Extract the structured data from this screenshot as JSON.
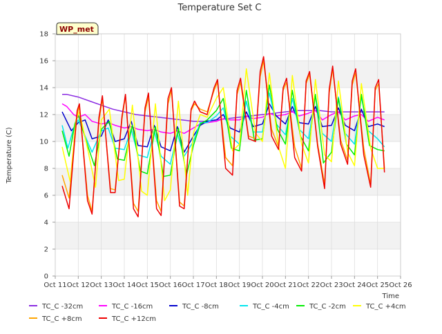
{
  "chart_data": {
    "type": "line",
    "title": "Temperature Set C",
    "xlabel": "Time",
    "ylabel": "Temperature (C)",
    "site_label": "WP_met",
    "xlim": [
      11,
      26
    ],
    "ylim": [
      0,
      18
    ],
    "x_ticks": [
      {
        "value": 11,
        "label": "Oct 11"
      },
      {
        "value": 12,
        "label": "Oct 12"
      },
      {
        "value": 13,
        "label": "Oct 13"
      },
      {
        "value": 14,
        "label": "Oct 14"
      },
      {
        "value": 15,
        "label": "Oct 15"
      },
      {
        "value": 16,
        "label": "Oct 16"
      },
      {
        "value": 17,
        "label": "Oct 17"
      },
      {
        "value": 18,
        "label": "Oct 18"
      },
      {
        "value": 19,
        "label": "Oct 19"
      },
      {
        "value": 20,
        "label": "Oct 20"
      },
      {
        "value": 21,
        "label": "Oct 21"
      },
      {
        "value": 22,
        "label": "Oct 22"
      },
      {
        "value": 23,
        "label": "Oct 23"
      },
      {
        "value": 24,
        "label": "Oct 24"
      },
      {
        "value": 25,
        "label": "Oct 25"
      },
      {
        "value": 26,
        "label": "Oct 26"
      }
    ],
    "y_ticks": [
      0,
      2,
      4,
      6,
      8,
      10,
      12,
      14,
      16,
      18
    ],
    "grid": true,
    "legend_placement": "bottom",
    "series": [
      {
        "name": "TC_C -32cm",
        "color": "#8a2be2",
        "x": [
          11.3,
          11.5,
          12,
          12.5,
          13,
          13.5,
          14,
          14.5,
          15,
          15.5,
          16,
          16.5,
          17,
          17.5,
          18,
          18.5,
          19,
          19.5,
          20,
          20.5,
          21,
          21.5,
          22,
          22.5,
          23,
          23.5,
          24,
          24.5,
          25,
          25.3
        ],
        "y": [
          13.5,
          13.5,
          13.3,
          13.0,
          12.7,
          12.4,
          12.2,
          12.0,
          11.9,
          11.8,
          11.7,
          11.6,
          11.5,
          11.5,
          11.6,
          11.7,
          11.8,
          11.9,
          12.0,
          12.1,
          12.2,
          12.3,
          12.3,
          12.3,
          12.2,
          12.2,
          12.2,
          12.2,
          12.2,
          12.2
        ]
      },
      {
        "name": "TC_C -16cm",
        "color": "#ff00ff",
        "x": [
          11.3,
          11.5,
          11.8,
          12.0,
          12.3,
          12.6,
          13.0,
          13.3,
          13.6,
          14.0,
          14.3,
          14.6,
          15.0,
          15.3,
          15.6,
          16.0,
          16.3,
          16.6,
          17.0,
          17.3,
          17.6,
          18.0,
          18.3,
          18.6,
          19.0,
          19.3,
          19.6,
          20.0,
          20.3,
          20.6,
          21.0,
          21.3,
          21.6,
          22.0,
          22.3,
          22.6,
          23.0,
          23.3,
          23.6,
          24.0,
          24.3,
          24.6,
          25.0,
          25.3
        ],
        "y": [
          12.8,
          12.6,
          12.0,
          11.8,
          12.0,
          11.5,
          11.3,
          11.4,
          11.2,
          11.0,
          11.1,
          10.9,
          10.8,
          10.9,
          10.7,
          10.6,
          10.8,
          10.6,
          11.0,
          11.3,
          11.4,
          11.5,
          11.7,
          11.6,
          11.6,
          11.9,
          11.7,
          11.8,
          12.1,
          11.9,
          12.0,
          12.2,
          11.9,
          12.1,
          12.3,
          11.6,
          12.0,
          12.2,
          11.6,
          11.9,
          12.0,
          11.5,
          11.8,
          11.6
        ]
      },
      {
        "name": "TC_C -8cm",
        "color": "#0000cd",
        "x": [
          11.3,
          11.5,
          11.7,
          12.0,
          12.3,
          12.6,
          13.0,
          13.3,
          13.6,
          14.0,
          14.3,
          14.6,
          15.0,
          15.3,
          15.6,
          16.0,
          16.3,
          16.6,
          17.0,
          17.3,
          17.6,
          18.0,
          18.3,
          18.6,
          19.0,
          19.3,
          19.6,
          20.0,
          20.3,
          20.6,
          21.0,
          21.3,
          21.6,
          22.0,
          22.3,
          22.6,
          23.0,
          23.3,
          23.6,
          24.0,
          24.3,
          24.6,
          25.0,
          25.3
        ],
        "y": [
          12.2,
          11.5,
          10.8,
          11.4,
          11.6,
          10.2,
          10.4,
          11.6,
          10.0,
          10.2,
          11.5,
          9.7,
          9.6,
          11.2,
          9.6,
          9.3,
          11.1,
          9.2,
          10.4,
          11.2,
          11.5,
          11.6,
          12.0,
          11.0,
          10.7,
          12.2,
          11.1,
          11.3,
          12.8,
          11.9,
          11.3,
          12.6,
          11.4,
          11.3,
          12.6,
          11.1,
          11.2,
          12.5,
          11.2,
          10.8,
          12.4,
          11.1,
          11.3,
          11.1
        ]
      },
      {
        "name": "TC_C -4cm",
        "color": "#00e5ee",
        "x": [
          11.3,
          11.55,
          11.8,
          12.0,
          12.3,
          12.6,
          13.0,
          13.3,
          13.6,
          14.0,
          14.3,
          14.6,
          15.0,
          15.3,
          15.6,
          16.0,
          16.3,
          16.6,
          17.0,
          17.3,
          17.6,
          18.0,
          18.3,
          18.6,
          19.0,
          19.3,
          19.6,
          20.0,
          20.3,
          20.6,
          21.0,
          21.3,
          21.6,
          22.0,
          22.3,
          22.6,
          23.0,
          23.3,
          23.6,
          24.0,
          24.3,
          24.6,
          25.0,
          25.3
        ],
        "y": [
          11.2,
          9.5,
          11.0,
          11.6,
          10.4,
          9.2,
          10.8,
          11.0,
          9.5,
          9.4,
          10.9,
          9.0,
          8.8,
          10.8,
          8.9,
          8.3,
          10.6,
          8.9,
          10.0,
          11.4,
          11.4,
          11.9,
          12.5,
          10.4,
          9.8,
          13.0,
          10.7,
          10.7,
          13.6,
          11.3,
          10.5,
          13.2,
          10.9,
          10.2,
          13.4,
          10.6,
          10.0,
          13.3,
          10.6,
          9.8,
          13.3,
          10.8,
          10.2,
          9.6
        ]
      },
      {
        "name": "TC_C -2cm",
        "color": "#00ee00",
        "x": [
          11.3,
          11.6,
          11.85,
          12.0,
          12.35,
          12.7,
          13.0,
          13.35,
          13.7,
          14.0,
          14.35,
          14.7,
          15.0,
          15.35,
          15.7,
          16.0,
          16.35,
          16.7,
          17.0,
          17.3,
          17.6,
          18.0,
          18.3,
          18.65,
          19.0,
          19.3,
          19.65,
          20.0,
          20.3,
          20.65,
          21.0,
          21.3,
          21.65,
          22.0,
          22.3,
          22.65,
          23.0,
          23.3,
          23.65,
          24.0,
          24.3,
          24.65,
          25.0,
          25.3
        ],
        "y": [
          10.8,
          8.9,
          11.3,
          12.0,
          10.0,
          8.2,
          10.9,
          11.5,
          8.7,
          8.6,
          11.2,
          7.8,
          7.6,
          11.1,
          7.4,
          7.5,
          11.0,
          7.5,
          9.7,
          11.3,
          11.6,
          12.3,
          13.2,
          9.5,
          9.3,
          13.8,
          10.1,
          10.2,
          14.2,
          10.9,
          9.8,
          13.8,
          10.4,
          9.3,
          13.5,
          8.4,
          9.2,
          13.2,
          9.8,
          9.0,
          13.5,
          9.7,
          9.4,
          9.3
        ]
      },
      {
        "name": "TC_C +4cm",
        "color": "#ffff00",
        "x": [
          11.3,
          11.65,
          11.9,
          12.05,
          12.4,
          12.75,
          13.0,
          13.35,
          13.75,
          14.0,
          14.35,
          14.75,
          15.0,
          15.35,
          15.75,
          16.0,
          16.35,
          16.75,
          17.0,
          17.3,
          17.6,
          18.0,
          18.3,
          18.7,
          19.0,
          19.3,
          19.7,
          20.0,
          20.3,
          20.7,
          21.0,
          21.3,
          21.7,
          22.0,
          22.3,
          22.7,
          23.0,
          23.3,
          23.7,
          24.0,
          24.3,
          24.7,
          25.0,
          25.3
        ],
        "y": [
          9.6,
          7.0,
          11.6,
          12.2,
          9.5,
          6.6,
          11.6,
          12.4,
          7.1,
          7.2,
          12.7,
          6.3,
          6.0,
          12.8,
          5.6,
          6.4,
          13.0,
          6.0,
          10.6,
          12.0,
          11.8,
          13.2,
          14.0,
          9.3,
          9.8,
          15.4,
          10.6,
          10.0,
          15.1,
          9.6,
          8.0,
          14.9,
          9.8,
          8.4,
          14.6,
          9.0,
          8.5,
          14.5,
          9.2,
          8.2,
          14.3,
          9.5,
          8.0,
          8.0
        ]
      },
      {
        "name": "TC_C +8cm",
        "color": "#ffa500",
        "x": [
          11.3,
          11.6,
          11.95,
          12.05,
          12.4,
          12.6,
          12.9,
          13.05,
          13.4,
          13.6,
          13.9,
          14.05,
          14.4,
          14.6,
          14.9,
          15.05,
          15.4,
          15.6,
          15.9,
          16.05,
          16.4,
          16.6,
          16.9,
          17.05,
          17.3,
          17.6,
          17.9,
          18.05,
          18.4,
          18.7,
          18.9,
          19.05,
          19.4,
          19.7,
          19.9,
          20.05,
          20.4,
          20.7,
          20.9,
          21.05,
          21.4,
          21.7,
          21.9,
          22.05,
          22.4,
          22.7,
          22.9,
          23.05,
          23.4,
          23.7,
          23.9,
          24.05,
          24.4,
          24.7,
          24.9,
          25.05,
          25.3
        ],
        "y": [
          7.5,
          5.8,
          12.0,
          12.6,
          6.0,
          4.8,
          11.5,
          13.2,
          6.5,
          6.4,
          11.7,
          13.4,
          5.4,
          4.8,
          12.2,
          13.3,
          5.6,
          4.8,
          12.8,
          13.8,
          5.5,
          5.2,
          12.3,
          12.8,
          12.4,
          12.2,
          13.8,
          14.4,
          8.8,
          8.2,
          13.5,
          14.4,
          10.4,
          10.2,
          14.8,
          16.0,
          10.9,
          9.6,
          13.8,
          14.4,
          9.6,
          8.0,
          14.3,
          15.0,
          9.8,
          6.8,
          13.6,
          15.4,
          10.1,
          8.6,
          14.2,
          15.1,
          9.5,
          6.8,
          13.8,
          14.3,
          8.0
        ]
      },
      {
        "name": "TC_C +12cm",
        "color": "#ee0000",
        "x": [
          11.3,
          11.6,
          11.95,
          12.05,
          12.4,
          12.6,
          12.9,
          13.05,
          13.4,
          13.6,
          13.9,
          14.05,
          14.4,
          14.6,
          14.9,
          15.05,
          15.4,
          15.6,
          15.9,
          16.05,
          16.4,
          16.6,
          16.9,
          17.05,
          17.3,
          17.6,
          17.9,
          18.05,
          18.4,
          18.7,
          18.9,
          19.05,
          19.4,
          19.7,
          19.9,
          20.05,
          20.4,
          20.7,
          20.9,
          21.05,
          21.4,
          21.7,
          21.9,
          22.05,
          22.4,
          22.7,
          22.9,
          23.05,
          23.4,
          23.7,
          23.9,
          24.05,
          24.4,
          24.7,
          24.9,
          25.05,
          25.3
        ],
        "y": [
          6.7,
          5.0,
          12.3,
          12.8,
          5.6,
          4.6,
          11.8,
          13.4,
          6.2,
          6.2,
          11.9,
          13.5,
          5.0,
          4.4,
          12.5,
          13.6,
          5.0,
          4.5,
          13.2,
          14.0,
          5.2,
          5.0,
          12.4,
          13.0,
          12.2,
          12.0,
          14.0,
          14.6,
          8.0,
          7.5,
          13.8,
          14.7,
          10.2,
          10.0,
          15.2,
          16.3,
          10.4,
          9.4,
          14.0,
          14.7,
          8.8,
          7.8,
          14.5,
          15.2,
          9.6,
          6.5,
          13.9,
          15.6,
          9.8,
          8.3,
          14.5,
          15.4,
          9.0,
          6.6,
          14.0,
          14.6,
          7.7
        ]
      }
    ]
  }
}
